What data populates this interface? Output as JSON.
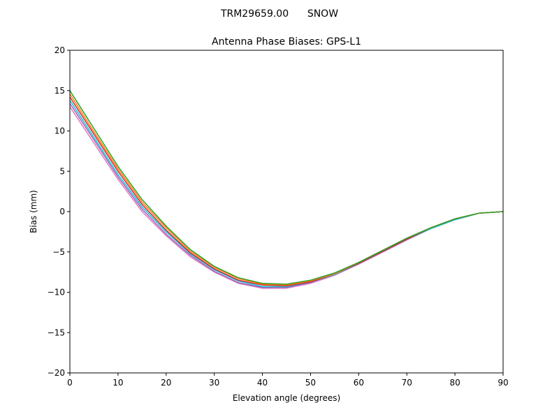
{
  "chart_data": {
    "type": "line",
    "suptitle": "TRM29659.00      SNOW",
    "title": "Antenna Phase Biases: GPS-L1",
    "xlabel": "Elevation angle (degrees)",
    "ylabel": "Bias (mm)",
    "xlim": [
      0,
      90
    ],
    "ylim": [
      -20,
      20
    ],
    "xticks": [
      0,
      10,
      20,
      30,
      40,
      50,
      60,
      70,
      80,
      90
    ],
    "yticks": [
      -20,
      -15,
      -10,
      -5,
      0,
      5,
      10,
      15,
      20
    ],
    "ytick_labels": [
      "−20",
      "−15",
      "−10",
      "−5",
      "0",
      "5",
      "10",
      "15",
      "20"
    ],
    "grid": false,
    "x": [
      0,
      5,
      10,
      15,
      20,
      25,
      30,
      35,
      40,
      45,
      50,
      55,
      60,
      65,
      70,
      75,
      80,
      85,
      90
    ],
    "series": [
      {
        "color": "#e377c2",
        "values": [
          13.0,
          8.5,
          4.0,
          0.0,
          -3.0,
          -5.6,
          -7.5,
          -8.9,
          -9.5,
          -9.5,
          -8.9,
          -7.9,
          -6.5,
          -5.0,
          -3.5,
          -2.1,
          -1.0,
          -0.2,
          0
        ]
      },
      {
        "color": "#9467bd",
        "values": [
          13.4,
          8.9,
          4.3,
          0.3,
          -2.8,
          -5.4,
          -7.4,
          -8.8,
          -9.4,
          -9.4,
          -8.8,
          -7.8,
          -6.5,
          -5.0,
          -3.5,
          -2.1,
          -1.0,
          -0.2,
          0
        ]
      },
      {
        "color": "#17becf",
        "values": [
          13.8,
          9.2,
          4.6,
          0.6,
          -2.5,
          -5.2,
          -7.2,
          -8.6,
          -9.3,
          -9.3,
          -8.7,
          -7.8,
          -6.4,
          -4.9,
          -3.4,
          -2.1,
          -1.0,
          -0.2,
          0
        ]
      },
      {
        "color": "#d62728",
        "values": [
          14.2,
          9.6,
          5.0,
          0.9,
          -2.3,
          -5.1,
          -7.1,
          -8.5,
          -9.1,
          -9.2,
          -8.7,
          -7.7,
          -6.4,
          -4.9,
          -3.4,
          -2.0,
          -0.9,
          -0.2,
          0
        ]
      },
      {
        "color": "#ff7f0e",
        "values": [
          14.6,
          9.9,
          5.3,
          1.2,
          -2.0,
          -4.9,
          -6.9,
          -8.3,
          -9.0,
          -9.1,
          -8.6,
          -7.7,
          -6.3,
          -4.8,
          -3.3,
          -2.0,
          -0.9,
          -0.2,
          0
        ]
      },
      {
        "color": "#2ca02c",
        "values": [
          15.0,
          10.3,
          5.6,
          1.5,
          -1.8,
          -4.7,
          -6.8,
          -8.2,
          -8.9,
          -9.0,
          -8.5,
          -7.6,
          -6.3,
          -4.8,
          -3.3,
          -2.0,
          -0.9,
          -0.2,
          0
        ]
      }
    ]
  }
}
